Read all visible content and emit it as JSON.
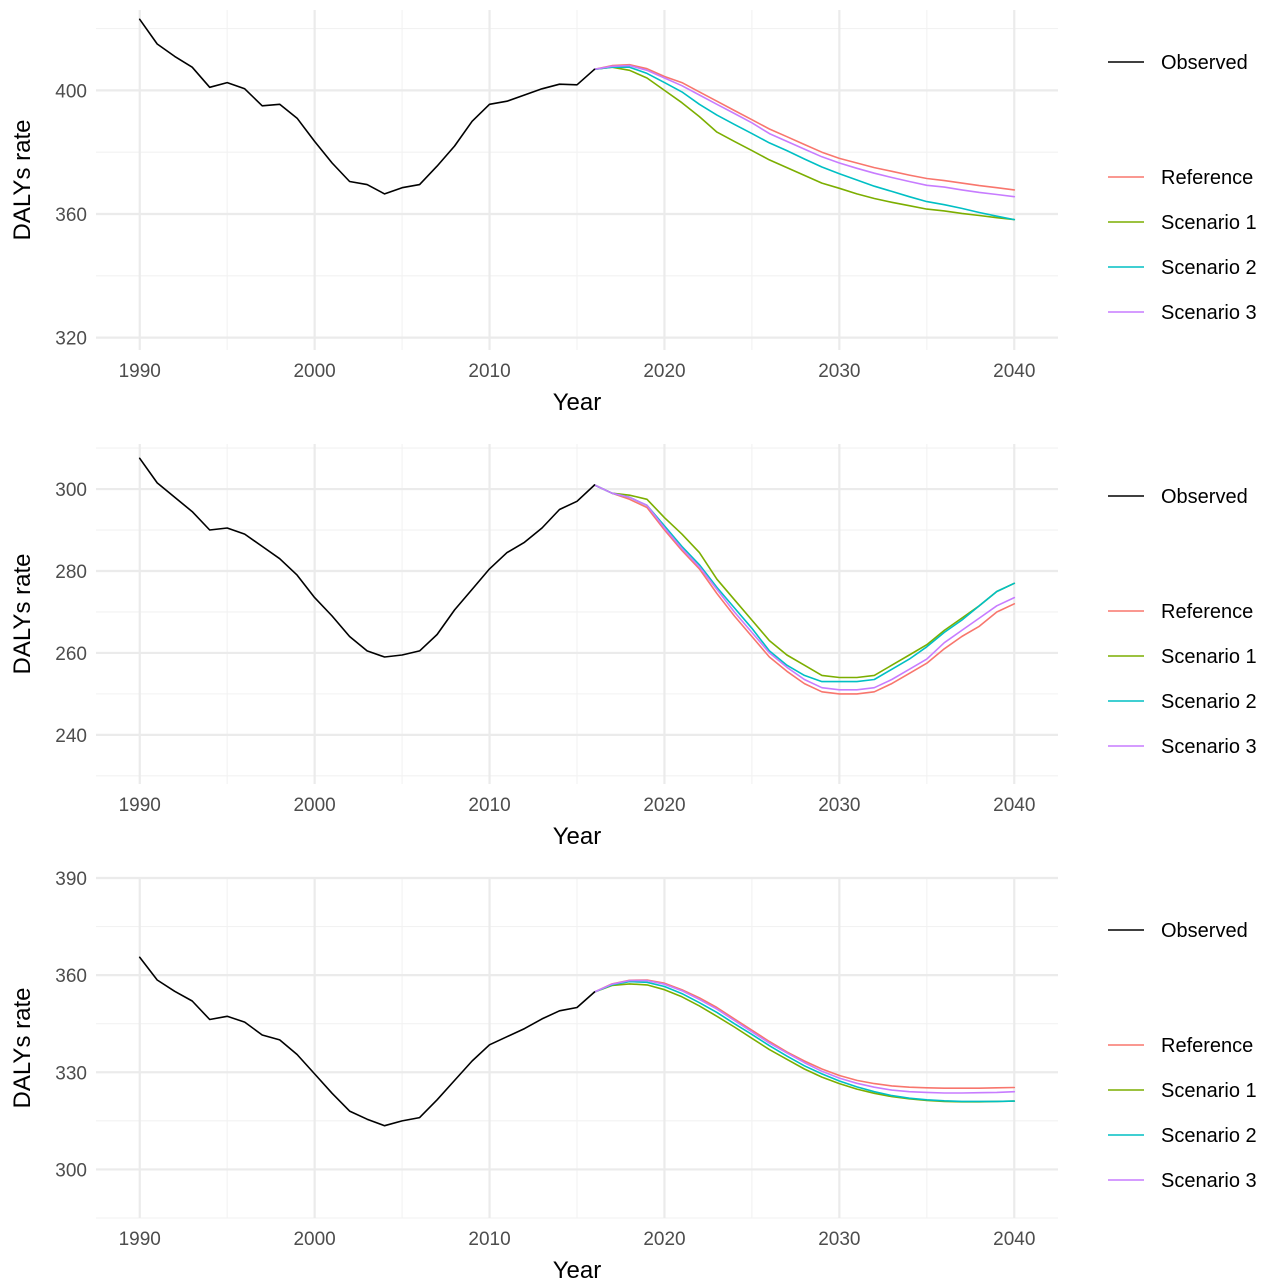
{
  "chart_data": [
    {
      "type": "line",
      "title": "",
      "xlabel": "Year",
      "ylabel": "DALYs rate",
      "xlim": [
        1987.5,
        2042.5
      ],
      "ylim": [
        316,
        426
      ],
      "x_ticks": [
        1990,
        2000,
        2010,
        2020,
        2030,
        2040
      ],
      "y_ticks": [
        320,
        360,
        400
      ],
      "grid": true,
      "legend": "right",
      "observed": {
        "name": "Observed",
        "color": "#000000",
        "x": [
          1990,
          1991,
          1992,
          1993,
          1994,
          1995,
          1996,
          1997,
          1998,
          1999,
          2000,
          2001,
          2002,
          2003,
          2004,
          2005,
          2006,
          2007,
          2008,
          2009,
          2010,
          2011,
          2012,
          2013,
          2014,
          2015,
          2016
        ],
        "y": [
          423,
          415,
          411,
          407.5,
          401,
          402.5,
          400.5,
          395,
          395.5,
          391,
          383.5,
          376.5,
          370.5,
          369.5,
          366.5,
          368.5,
          369.5,
          375.5,
          382,
          390,
          395.5,
          396.5,
          398.5,
          400.5,
          402,
          401.8,
          406.8
        ]
      },
      "series_x": [
        2016,
        2017,
        2018,
        2019,
        2020,
        2021,
        2022,
        2023,
        2024,
        2025,
        2026,
        2027,
        2028,
        2029,
        2030,
        2031,
        2032,
        2033,
        2034,
        2035,
        2036,
        2037,
        2038,
        2039,
        2040
      ],
      "series": [
        {
          "name": "Reference",
          "color": "#F8766D",
          "values": [
            406.8,
            408,
            408.3,
            407,
            404.5,
            402.5,
            399.5,
            396.5,
            393.5,
            390.5,
            387.5,
            385,
            382.5,
            380,
            378,
            376.5,
            375,
            373.8,
            372.6,
            371.5,
            370.8,
            370,
            369.2,
            368.5,
            367.8
          ]
        },
        {
          "name": "Scenario 1",
          "color": "#7CAE00",
          "values": [
            406.8,
            407.5,
            406.5,
            404,
            400,
            396,
            391.5,
            386.5,
            383.5,
            380.5,
            377.5,
            375,
            372.5,
            370,
            368.3,
            366.5,
            365,
            363.8,
            362.7,
            361.6,
            361,
            360.2,
            359.5,
            358.8,
            358.2
          ]
        },
        {
          "name": "Scenario 2",
          "color": "#00BFC4",
          "values": [
            406.8,
            407.5,
            407.5,
            405.5,
            402.5,
            399.5,
            395.5,
            392,
            389,
            386,
            383,
            380.5,
            377.8,
            375.2,
            373,
            371,
            369,
            367.3,
            365.6,
            364,
            363,
            361.8,
            360.5,
            359.3,
            358.2
          ]
        },
        {
          "name": "Scenario 3",
          "color": "#C77CFF",
          "values": [
            406.8,
            407.8,
            408,
            406.5,
            404,
            401.5,
            398.5,
            395.5,
            392.5,
            389.5,
            386,
            383.5,
            381,
            378.5,
            376.5,
            374.8,
            373.2,
            371.8,
            370.5,
            369.3,
            368.7,
            367.8,
            367,
            366.3,
            365.6
          ]
        }
      ]
    },
    {
      "type": "line",
      "title": "",
      "xlabel": "Year",
      "ylabel": "DALYs rate",
      "xlim": [
        1987.5,
        2042.5
      ],
      "ylim": [
        228,
        311
      ],
      "x_ticks": [
        1990,
        2000,
        2010,
        2020,
        2030,
        2040
      ],
      "y_ticks": [
        240,
        260,
        280,
        300
      ],
      "grid": true,
      "legend": "right",
      "observed": {
        "name": "Observed",
        "color": "#000000",
        "x": [
          1990,
          1991,
          1992,
          1993,
          1994,
          1995,
          1996,
          1997,
          1998,
          1999,
          2000,
          2001,
          2002,
          2003,
          2004,
          2005,
          2006,
          2007,
          2008,
          2009,
          2010,
          2011,
          2012,
          2013,
          2014,
          2015,
          2016
        ],
        "y": [
          307.5,
          301.5,
          298,
          294.5,
          290,
          290.5,
          289,
          286,
          283,
          279,
          273.5,
          269,
          264,
          260.5,
          259,
          259.5,
          260.5,
          264.5,
          270.5,
          275.5,
          280.5,
          284.5,
          287,
          290.5,
          295,
          297,
          301
        ]
      },
      "series_x": [
        2016,
        2017,
        2018,
        2019,
        2020,
        2021,
        2022,
        2023,
        2024,
        2025,
        2026,
        2027,
        2028,
        2029,
        2030,
        2031,
        2032,
        2033,
        2034,
        2035,
        2036,
        2037,
        2038,
        2039,
        2040
      ],
      "series": [
        {
          "name": "Reference",
          "color": "#F8766D",
          "values": [
            301,
            299,
            297.5,
            295.5,
            290,
            285,
            280.5,
            274.5,
            269,
            264,
            259,
            255.5,
            252.5,
            250.5,
            250,
            250,
            250.5,
            252.5,
            255,
            257.5,
            261,
            264,
            266.5,
            270,
            272
          ]
        },
        {
          "name": "Scenario 1",
          "color": "#7CAE00",
          "values": [
            301,
            299,
            298.5,
            297.5,
            293,
            289,
            284.5,
            278,
            273,
            268,
            263,
            259.5,
            257,
            254.5,
            254,
            254,
            254.5,
            257,
            259.5,
            262,
            265.5,
            268.5,
            271.5,
            275,
            277
          ]
        },
        {
          "name": "Scenario 2",
          "color": "#00BFC4",
          "values": [
            301,
            299,
            298,
            296,
            291,
            286,
            281.5,
            276,
            271,
            266,
            260.5,
            257,
            254.5,
            253,
            253,
            253,
            253.5,
            256,
            258.5,
            261.5,
            265,
            268,
            271.5,
            275,
            277
          ]
        },
        {
          "name": "Scenario 3",
          "color": "#C77CFF",
          "values": [
            301,
            299,
            298,
            296,
            290.5,
            285.5,
            281,
            275.5,
            270,
            265,
            260,
            256.5,
            253.5,
            251.5,
            251,
            251,
            251.5,
            253.5,
            256,
            258.5,
            262.5,
            265.5,
            268.5,
            271.5,
            273.5
          ]
        }
      ]
    },
    {
      "type": "line",
      "title": "",
      "xlabel": "Year",
      "ylabel": "DALYs rate",
      "xlim": [
        1987.5,
        2042.5
      ],
      "ylim": [
        285,
        390
      ],
      "x_ticks": [
        1990,
        2000,
        2010,
        2020,
        2030,
        2040
      ],
      "y_ticks": [
        300,
        330,
        360,
        390
      ],
      "grid": true,
      "legend": "right",
      "observed": {
        "name": "Observed",
        "color": "#000000",
        "x": [
          1990,
          1991,
          1992,
          1993,
          1994,
          1995,
          1996,
          1997,
          1998,
          1999,
          2000,
          2001,
          2002,
          2003,
          2004,
          2005,
          2006,
          2007,
          2008,
          2009,
          2010,
          2011,
          2012,
          2013,
          2014,
          2015,
          2016
        ],
        "y": [
          365.5,
          358.5,
          355,
          352,
          346.3,
          347.3,
          345.5,
          341.5,
          340,
          335.5,
          329.5,
          323.5,
          318,
          315.5,
          313.5,
          315,
          316,
          321.5,
          327.5,
          333.5,
          338.5,
          341,
          343.5,
          346.5,
          349,
          350,
          354.8
        ]
      },
      "series_x": [
        2016,
        2017,
        2018,
        2019,
        2020,
        2021,
        2022,
        2023,
        2024,
        2025,
        2026,
        2027,
        2028,
        2029,
        2030,
        2031,
        2032,
        2033,
        2034,
        2035,
        2036,
        2037,
        2038,
        2039,
        2040
      ],
      "series": [
        {
          "name": "Reference",
          "color": "#F8766D",
          "values": [
            354.8,
            357.3,
            358.4,
            358.5,
            357.5,
            355.5,
            353,
            350,
            346.5,
            343,
            339.5,
            336.3,
            333.5,
            331,
            329,
            327.5,
            326.5,
            325.8,
            325.4,
            325.2,
            325.1,
            325.1,
            325.1,
            325.2,
            325.3
          ]
        },
        {
          "name": "Scenario 1",
          "color": "#7CAE00",
          "values": [
            354.8,
            356.8,
            357.3,
            357,
            355.5,
            353.3,
            350.5,
            347.3,
            344,
            340.5,
            337,
            334,
            331,
            328.5,
            326.5,
            324.8,
            323.5,
            322.5,
            321.8,
            321.3,
            321,
            320.9,
            320.9,
            321,
            321.1
          ]
        },
        {
          "name": "Scenario 2",
          "color": "#00BFC4",
          "values": [
            354.8,
            357,
            358,
            357.8,
            356.5,
            354.3,
            351.5,
            348.5,
            345,
            341.7,
            338.2,
            335,
            332,
            329.5,
            327.3,
            325.5,
            324,
            322.8,
            322,
            321.5,
            321.2,
            321,
            321,
            321,
            321.1
          ]
        },
        {
          "name": "Scenario 3",
          "color": "#C77CFF",
          "values": [
            354.8,
            357.2,
            358.3,
            358.3,
            357.2,
            355.2,
            352.5,
            349.5,
            346,
            342.5,
            339,
            336,
            333,
            330.3,
            328.2,
            326.6,
            325.4,
            324.5,
            324,
            323.8,
            323.6,
            323.6,
            323.7,
            323.8,
            324
          ]
        }
      ]
    }
  ]
}
